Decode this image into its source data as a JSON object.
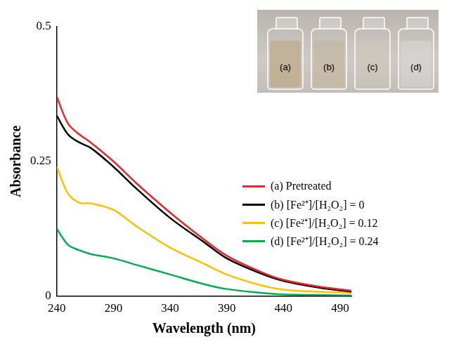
{
  "chart_data": {
    "type": "line",
    "x_label": "Wavelength (nm)",
    "y_label": "Absorbance",
    "xlim": [
      240,
      500
    ],
    "xticks": [
      240,
      290,
      340,
      390,
      440,
      490
    ],
    "ylim": [
      0,
      0.5
    ],
    "yticks": [
      0,
      0.25,
      0.5
    ],
    "grid": false,
    "legend": "right",
    "annotations": [
      "(a)",
      "(b)",
      "(c)",
      "(d)"
    ],
    "x": [
      240,
      250,
      260,
      270,
      290,
      310,
      340,
      370,
      390,
      420,
      440,
      470,
      500
    ],
    "series": [
      {
        "name": "(a) Pretreated",
        "color": "#e8262b",
        "values": [
          0.37,
          0.32,
          0.3,
          0.285,
          0.25,
          0.21,
          0.155,
          0.105,
          0.075,
          0.045,
          0.03,
          0.018,
          0.01
        ]
      },
      {
        "name": "(b) [Fe²⁺]/[H₂O₂] = 0",
        "color": "#000000",
        "values": [
          0.335,
          0.3,
          0.285,
          0.275,
          0.24,
          0.2,
          0.145,
          0.1,
          0.07,
          0.042,
          0.028,
          0.016,
          0.008
        ]
      },
      {
        "name": "(c) [Fe²⁺]/[H₂O₂] = 0.12",
        "color": "#ffc000",
        "values": [
          0.24,
          0.19,
          0.173,
          0.172,
          0.16,
          0.13,
          0.09,
          0.06,
          0.04,
          0.02,
          0.012,
          0.008,
          0.006
        ]
      },
      {
        "name": "(d) [Fe²⁺]/[H₂O₂] = 0.24",
        "color": "#00b050",
        "values": [
          0.125,
          0.095,
          0.085,
          0.078,
          0.07,
          0.058,
          0.04,
          0.022,
          0.013,
          0.006,
          0.003,
          0.002,
          0.001
        ]
      }
    ]
  }
}
